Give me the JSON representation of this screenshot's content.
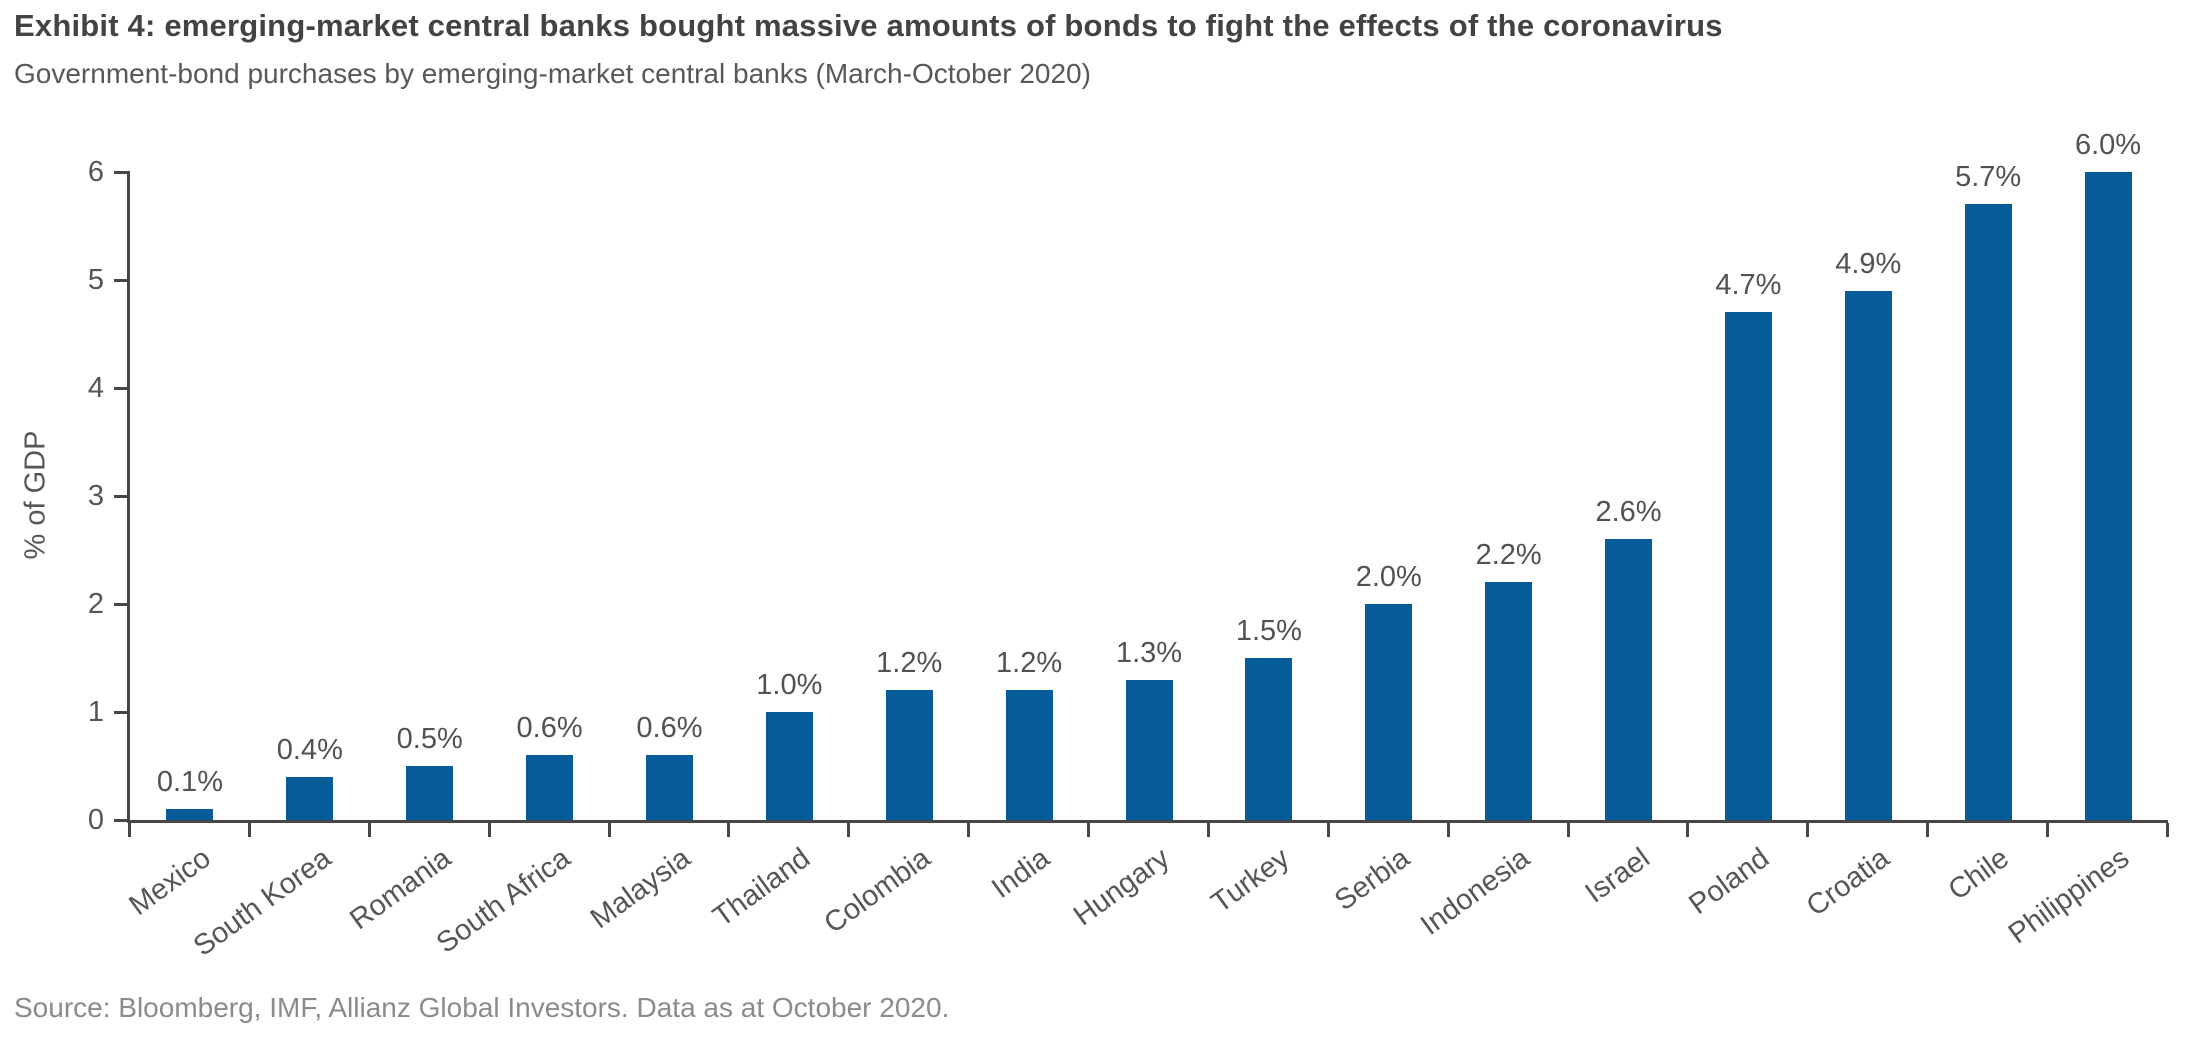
{
  "header": {
    "title": "Exhibit 4: emerging-market central banks bought massive amounts of bonds to fight the effects of the coronavirus",
    "subtitle": "Government-bond purchases by emerging-market central banks (March-October 2020)"
  },
  "footer": {
    "source": "Source: Bloomberg, IMF, Allianz Global Investors. Data as at October 2020."
  },
  "chart_data": {
    "type": "bar",
    "title": "Government-bond purchases by emerging-market central banks (March-October 2020)",
    "categories": [
      "Mexico",
      "South Korea",
      "Romania",
      "South Africa",
      "Malaysia",
      "Thailand",
      "Colombia",
      "India",
      "Hungary",
      "Turkey",
      "Serbia",
      "Indonesia",
      "Israel",
      "Poland",
      "Croatia",
      "Chile",
      "Philippines"
    ],
    "values": [
      0.1,
      0.4,
      0.5,
      0.6,
      0.6,
      1.0,
      1.2,
      1.2,
      1.3,
      1.5,
      2.0,
      2.2,
      2.6,
      4.7,
      4.9,
      5.7,
      6.0
    ],
    "value_labels": [
      "0.1%",
      "0.4%",
      "0.5%",
      "0.6%",
      "0.6%",
      "1.0%",
      "1.2%",
      "1.2%",
      "1.3%",
      "1.5%",
      "2.0%",
      "2.2%",
      "2.6%",
      "4.7%",
      "4.9%",
      "5.7%",
      "6.0%"
    ],
    "xlabel": "",
    "ylabel": "% of GDP",
    "ylim": [
      0,
      6
    ],
    "yticks": [
      0,
      1,
      2,
      3,
      4,
      5,
      6
    ],
    "grid": "off",
    "legend": "none",
    "data_labels_position": "above bars",
    "x_label_rotation_deg": -36,
    "bar_color": "#065c99",
    "axis_color": "#47474a",
    "text_color": "#55565a"
  }
}
